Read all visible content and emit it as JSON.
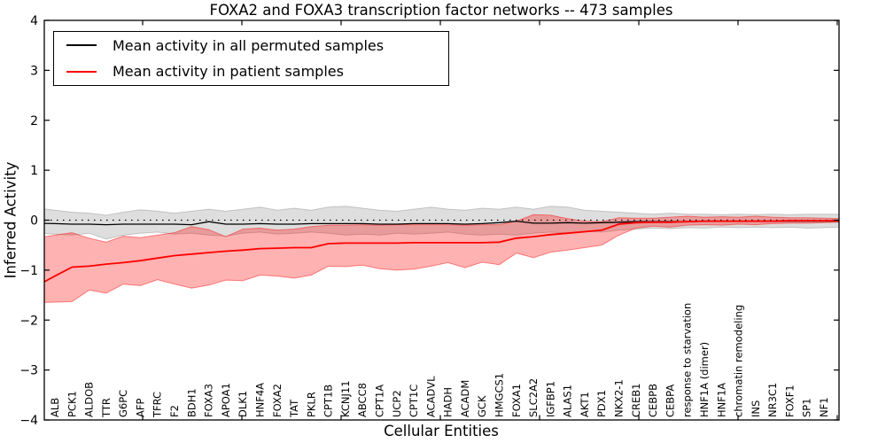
{
  "title": "FOXA2 and FOXA3 transcription factor networks -- 473 samples",
  "axes": {
    "ylabel": "Inferred Activity",
    "xlabel": "Cellular Entities",
    "yticks": [
      {
        "v": 4,
        "label": "4"
      },
      {
        "v": 3,
        "label": "3"
      },
      {
        "v": 2,
        "label": "2"
      },
      {
        "v": 1,
        "label": "1"
      },
      {
        "v": 0,
        "label": "0"
      },
      {
        "v": -1,
        "label": "−1"
      },
      {
        "v": -2,
        "label": "−2"
      },
      {
        "v": -3,
        "label": "−3"
      },
      {
        "v": -4,
        "label": "−4"
      }
    ]
  },
  "legend": {
    "entries": [
      {
        "label": "Mean activity in all permuted samples",
        "color": "#000000"
      },
      {
        "label": "Mean activity in patient samples",
        "color": "#ff0000"
      }
    ]
  },
  "colors": {
    "permuted_line": "#000000",
    "patient_line": "#ff0000",
    "permuted_band": "rgba(0,0,0,0.13)",
    "permuted_band_edge": "rgba(0,0,0,0.18)",
    "patient_band": "rgba(255,0,0,0.30)",
    "patient_band_edge": "rgba(255,0,0,0.45)",
    "zero_line": "#000000",
    "frame": "#000000"
  },
  "chart_data": {
    "type": "line",
    "title": "FOXA2 and FOXA3 transcription factor networks -- 473 samples",
    "xlabel": "Cellular Entities",
    "ylabel": "Inferred Activity",
    "ylim": [
      -4,
      4
    ],
    "grid": false,
    "zero_line_dotted": true,
    "legend_position": "upper left",
    "sample_count": "473 samples",
    "categories": [
      "ALB",
      "PCK1",
      "ALDOB",
      "TTR",
      "G6PC",
      "AFP",
      "TFRC",
      "F2",
      "BDH1",
      "FOXA3",
      "APOA1",
      "DLK1",
      "HNF4A",
      "FOXA2",
      "TAT",
      "PKLR",
      "CPT1B",
      "KCNJ11",
      "ABCC8",
      "CPT1A",
      "UCP2",
      "CPT1C",
      "ACADVL",
      "HADH",
      "ACADM",
      "GCK",
      "HMGCS1",
      "FOXA1",
      "SLC2A2",
      "IGFBP1",
      "ALAS1",
      "AKT1",
      "PDX1",
      "NKX2-1",
      "CREB1",
      "CEBPB",
      "CEBPA",
      "response to starvation",
      "HNF1A (dimer)",
      "HNF1A",
      "chromatin remodeling",
      "INS",
      "NR3C1",
      "FOXF1",
      "SP1",
      "NF1"
    ],
    "series": [
      {
        "name": "Mean activity in all permuted samples",
        "color": "#000000",
        "values": [
          -0.07,
          -0.08,
          -0.08,
          -0.09,
          -0.08,
          -0.08,
          -0.08,
          -0.08,
          -0.09,
          -0.03,
          -0.08,
          -0.08,
          -0.07,
          -0.08,
          -0.08,
          -0.07,
          -0.07,
          -0.07,
          -0.07,
          -0.08,
          -0.08,
          -0.07,
          -0.07,
          -0.07,
          -0.08,
          -0.07,
          -0.05,
          -0.02,
          -0.06,
          -0.06,
          -0.05,
          -0.06,
          -0.05,
          -0.04,
          -0.03,
          -0.03,
          -0.03,
          -0.03,
          -0.02,
          -0.02,
          -0.02,
          -0.02,
          -0.02,
          -0.02,
          -0.02,
          -0.02
        ],
        "band_low": [
          -0.28,
          -0.3,
          -0.26,
          -0.38,
          -0.3,
          -0.26,
          -0.24,
          -0.28,
          -0.26,
          -0.3,
          -0.32,
          -0.26,
          -0.24,
          -0.28,
          -0.26,
          -0.24,
          -0.26,
          -0.3,
          -0.28,
          -0.3,
          -0.26,
          -0.28,
          -0.26,
          -0.24,
          -0.28,
          -0.3,
          -0.28,
          -0.3,
          -0.26,
          -0.24,
          -0.26,
          -0.22,
          -0.24,
          -0.2,
          -0.18,
          -0.16,
          -0.17,
          -0.15,
          -0.16,
          -0.14,
          -0.15,
          -0.14,
          -0.15,
          -0.14,
          -0.16,
          -0.15
        ],
        "band_high": [
          0.2,
          0.16,
          0.14,
          0.1,
          0.16,
          0.21,
          0.18,
          0.14,
          0.18,
          0.22,
          0.18,
          0.22,
          0.26,
          0.2,
          0.24,
          0.2,
          0.26,
          0.28,
          0.24,
          0.2,
          0.18,
          0.22,
          0.26,
          0.22,
          0.2,
          0.24,
          0.22,
          0.26,
          0.22,
          0.28,
          0.26,
          0.2,
          0.18,
          0.16,
          0.14,
          0.12,
          0.14,
          0.12,
          0.12,
          0.11,
          0.12,
          0.11,
          0.12,
          0.11,
          0.12,
          0.12
        ]
      },
      {
        "name": "Mean activity in patient samples",
        "color": "#ff0000",
        "values": [
          -1.12,
          -0.94,
          -0.92,
          -0.88,
          -0.85,
          -0.81,
          -0.76,
          -0.71,
          -0.68,
          -0.65,
          -0.62,
          -0.6,
          -0.57,
          -0.56,
          -0.55,
          -0.55,
          -0.47,
          -0.46,
          -0.46,
          -0.46,
          -0.46,
          -0.45,
          -0.45,
          -0.45,
          -0.45,
          -0.45,
          -0.44,
          -0.36,
          -0.33,
          -0.29,
          -0.26,
          -0.23,
          -0.2,
          -0.08,
          -0.05,
          -0.04,
          -0.04,
          -0.03,
          -0.02,
          -0.02,
          -0.02,
          -0.02,
          -0.02,
          -0.01,
          -0.01,
          -0.01
        ],
        "band_low": [
          -1.64,
          -1.63,
          -1.4,
          -1.46,
          -1.28,
          -1.31,
          -1.19,
          -1.28,
          -1.36,
          -1.3,
          -1.2,
          -1.21,
          -1.1,
          -1.12,
          -1.16,
          -1.1,
          -0.92,
          -0.93,
          -0.9,
          -0.97,
          -1.0,
          -0.98,
          -0.92,
          -0.85,
          -0.95,
          -0.84,
          -0.89,
          -0.66,
          -0.75,
          -0.64,
          -0.6,
          -0.55,
          -0.5,
          -0.3,
          -0.16,
          -0.12,
          -0.14,
          -0.1,
          -0.09,
          -0.1,
          -0.08,
          -0.09,
          -0.07,
          -0.06,
          -0.06,
          -0.05
        ],
        "band_high": [
          -0.3,
          -0.25,
          -0.36,
          -0.44,
          -0.32,
          -0.35,
          -0.3,
          -0.25,
          -0.13,
          -0.19,
          -0.33,
          -0.18,
          -0.16,
          -0.2,
          -0.18,
          -0.13,
          -0.1,
          -0.1,
          -0.09,
          -0.1,
          -0.09,
          -0.09,
          -0.09,
          -0.09,
          -0.1,
          -0.09,
          -0.09,
          -0.02,
          0.11,
          0.1,
          0.03,
          -0.02,
          -0.03,
          0.05,
          0.04,
          0.04,
          0.06,
          0.08,
          0.06,
          0.07,
          0.06,
          0.08,
          0.06,
          0.05,
          0.05,
          0.04
        ]
      }
    ]
  }
}
